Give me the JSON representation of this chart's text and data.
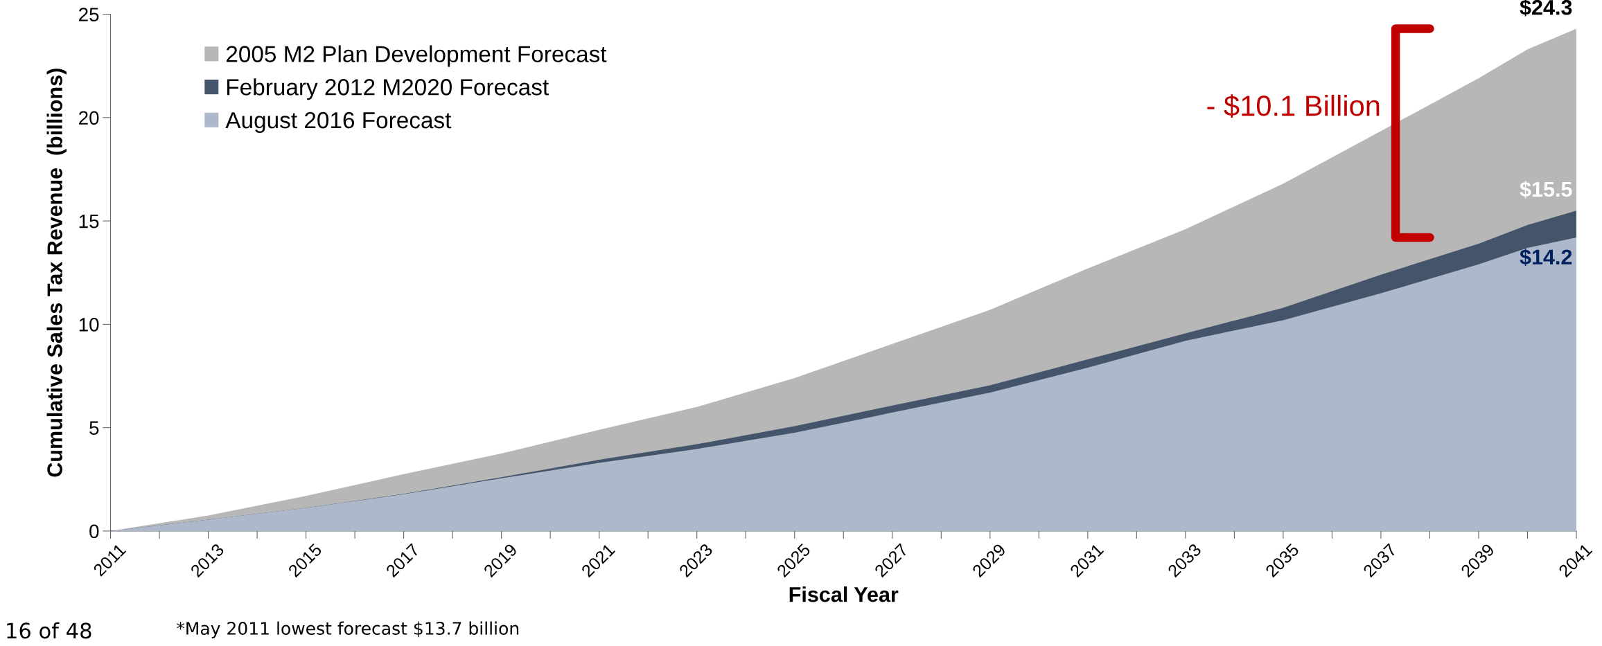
{
  "chart_data": {
    "type": "area",
    "xlabel": "Fiscal Year",
    "ylabel": "Cumulative Sales Tax Revenue  (billions)",
    "x": [
      2011,
      2013,
      2015,
      2017,
      2019,
      2021,
      2023,
      2025,
      2027,
      2029,
      2031,
      2033,
      2035,
      2037,
      2039,
      2040,
      2041
    ],
    "series": [
      {
        "name": "2005 M2 Plan Development Forecast",
        "color": "#b7b7b7",
        "values": [
          0,
          0.75,
          1.7,
          2.75,
          3.75,
          4.9,
          6.0,
          7.4,
          9.05,
          10.7,
          12.7,
          14.6,
          16.8,
          19.35,
          21.9,
          23.3,
          24.3
        ],
        "value_labels": [
          null,
          null,
          null,
          null,
          null,
          null,
          null,
          null,
          null,
          null,
          null,
          null,
          null,
          null,
          null,
          null,
          "$24.3"
        ]
      },
      {
        "name": "February 2012 M2020 Forecast",
        "color": "#44546a",
        "values": [
          0,
          0.55,
          1.12,
          1.8,
          2.6,
          3.45,
          4.2,
          5.07,
          6.07,
          7.05,
          8.3,
          9.56,
          10.8,
          12.4,
          13.9,
          14.8,
          15.5
        ],
        "value_labels": [
          null,
          null,
          null,
          null,
          null,
          null,
          null,
          null,
          null,
          null,
          null,
          null,
          null,
          null,
          null,
          null,
          "$15.5"
        ]
      },
      {
        "name": "August 2016 Forecast",
        "color": "#adb9ca",
        "values": [
          0,
          0.55,
          1.12,
          1.78,
          2.55,
          3.3,
          3.97,
          4.75,
          5.73,
          6.7,
          7.9,
          9.2,
          10.2,
          11.5,
          12.9,
          13.7,
          14.2
        ],
        "value_labels": [
          null,
          null,
          null,
          null,
          null,
          null,
          null,
          null,
          null,
          null,
          null,
          null,
          null,
          null,
          null,
          null,
          "$14.2"
        ]
      }
    ],
    "xlim": [
      2011,
      2041
    ],
    "xticks": [
      2011,
      {
        "value": 2012,
        "label": null
      },
      2013,
      {
        "value": 2014,
        "label": null
      },
      2015,
      {
        "value": 2016,
        "label": null
      },
      2017,
      {
        "value": 2018,
        "label": null
      },
      2019,
      {
        "value": 2020,
        "label": null
      },
      2021,
      {
        "value": 2022,
        "label": null
      },
      2023,
      {
        "value": 2024,
        "label": null
      },
      2025,
      {
        "value": 2026,
        "label": null
      },
      2027,
      {
        "value": 2028,
        "label": null
      },
      2029,
      {
        "value": 2030,
        "label": null
      },
      2031,
      {
        "value": 2032,
        "label": null
      },
      2033,
      {
        "value": 2034,
        "label": null
      },
      2035,
      {
        "value": 2036,
        "label": null
      },
      2037,
      {
        "value": 2038,
        "label": null
      },
      2039,
      {
        "value": 2040,
        "label": null
      },
      2041
    ],
    "ylim": [
      0,
      25
    ],
    "yticks": [
      0,
      5,
      10,
      15,
      20,
      25
    ],
    "grid": false,
    "legend": "top left",
    "annotations": [
      "- $10.1 Billion",
      "*May 2011 lowest forecast $13.7 billion",
      "16 of 48"
    ]
  }
}
